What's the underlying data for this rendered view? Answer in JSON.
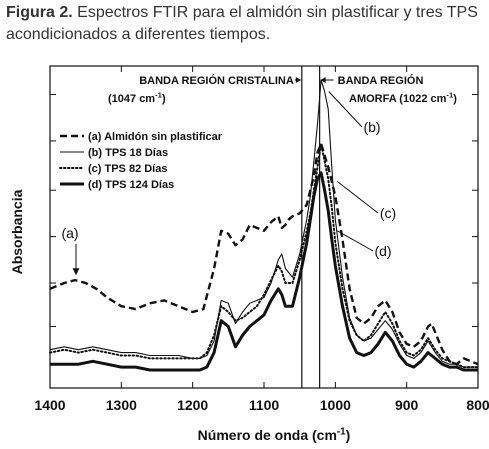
{
  "caption": {
    "label": "Figura 2.",
    "text": "Espectros FTIR para el almidón sin plastificar y tres TPS acondicionados a diferentes tiempos."
  },
  "chart_data": {
    "type": "line",
    "title": "",
    "xlabel": "Número de onda (cm",
    "xlabel_sup": "-1",
    "xlabel_close": ")",
    "ylabel": "Absorbancia",
    "xlim": [
      1400,
      800
    ],
    "ylim": [
      0,
      1
    ],
    "x_reversed": true,
    "x_ticks": [
      "1400",
      "1300",
      "1200",
      "1100",
      "1000",
      "900",
      "800"
    ],
    "x_tick_values": [
      1400,
      1300,
      1200,
      1100,
      1000,
      900,
      800
    ],
    "y_ticks_unlabeled": [
      0.15,
      0.3,
      0.46,
      0.62,
      0.79,
      0.95
    ],
    "grid": false,
    "legend_position": "top-left",
    "legend": [
      {
        "label": "(a) Almidón sin plastificar",
        "style": "dashed"
      },
      {
        "label": "(b) TPS 18 Días",
        "style": "thin-solid"
      },
      {
        "label": "(c) TPS 82 Días",
        "style": "dotted"
      },
      {
        "label": "(d) TPS 124 Días",
        "style": "thick-solid"
      }
    ],
    "reference_lines": [
      {
        "x": 1047,
        "label_line1": "BANDA REGIÓN CRISTALINA",
        "label_line2": "(1047 cm",
        "label_sup": "-1",
        "label_close": ")"
      },
      {
        "x": 1022,
        "label_line1": "BANDA REGIÓN",
        "label_line2": "AMORFA (1022 cm",
        "label_sup": "-1",
        "label_close": ")"
      }
    ],
    "annotations": [
      {
        "text": "(a)",
        "target_x": 1365,
        "target_y": 0.32
      },
      {
        "text": "(b)",
        "target_x": 1012,
        "target_y": 0.96
      },
      {
        "text": "(c)",
        "target_x": 1000,
        "target_y": 0.65
      },
      {
        "text": "(d)",
        "target_x": 1000,
        "target_y": 0.48
      }
    ],
    "series": [
      {
        "name": "(a) Almidón sin plastificar",
        "style": "dashed",
        "x": [
          1400,
          1380,
          1365,
          1350,
          1335,
          1320,
          1300,
          1280,
          1260,
          1240,
          1220,
          1200,
          1185,
          1170,
          1160,
          1150,
          1140,
          1130,
          1120,
          1110,
          1100,
          1090,
          1080,
          1075,
          1070,
          1065,
          1060,
          1050,
          1040,
          1030,
          1025,
          1020,
          1015,
          1010,
          1000,
          990,
          980,
          970,
          960,
          950,
          940,
          930,
          920,
          910,
          900,
          890,
          880,
          870,
          865,
          860,
          850,
          840,
          830,
          820,
          810,
          800
        ],
        "y": [
          0.28,
          0.3,
          0.31,
          0.3,
          0.28,
          0.25,
          0.22,
          0.21,
          0.23,
          0.24,
          0.22,
          0.2,
          0.21,
          0.35,
          0.48,
          0.47,
          0.43,
          0.45,
          0.5,
          0.49,
          0.48,
          0.51,
          0.53,
          0.49,
          0.5,
          0.52,
          0.53,
          0.54,
          0.57,
          0.67,
          0.75,
          0.78,
          0.74,
          0.7,
          0.6,
          0.45,
          0.28,
          0.18,
          0.16,
          0.18,
          0.22,
          0.24,
          0.2,
          0.13,
          0.09,
          0.08,
          0.1,
          0.15,
          0.16,
          0.13,
          0.07,
          0.03,
          0.02,
          0.04,
          0.03,
          0.02
        ]
      },
      {
        "name": "(b) TPS 18 Días",
        "style": "thin-solid",
        "x": [
          1400,
          1380,
          1360,
          1340,
          1320,
          1300,
          1280,
          1260,
          1240,
          1220,
          1200,
          1190,
          1180,
          1170,
          1160,
          1150,
          1140,
          1130,
          1120,
          1110,
          1100,
          1090,
          1080,
          1075,
          1070,
          1060,
          1050,
          1040,
          1035,
          1030,
          1025,
          1020,
          1015,
          1010,
          1005,
          1000,
          990,
          980,
          970,
          960,
          950,
          940,
          930,
          920,
          910,
          900,
          890,
          880,
          870,
          860,
          850,
          840,
          830,
          820,
          810,
          800
        ],
        "y": [
          0.07,
          0.08,
          0.07,
          0.08,
          0.07,
          0.06,
          0.06,
          0.05,
          0.05,
          0.05,
          0.04,
          0.04,
          0.05,
          0.1,
          0.24,
          0.23,
          0.16,
          0.2,
          0.23,
          0.24,
          0.25,
          0.3,
          0.38,
          0.4,
          0.35,
          0.32,
          0.4,
          0.52,
          0.6,
          0.72,
          0.85,
          1.0,
          0.96,
          0.9,
          0.7,
          0.52,
          0.32,
          0.18,
          0.12,
          0.1,
          0.11,
          0.14,
          0.17,
          0.14,
          0.09,
          0.05,
          0.04,
          0.06,
          0.1,
          0.06,
          0.03,
          0.02,
          0.02,
          0.01,
          0.01,
          0.01
        ]
      },
      {
        "name": "(c) TPS 82 Días",
        "style": "dotted",
        "x": [
          1400,
          1380,
          1360,
          1340,
          1320,
          1300,
          1280,
          1260,
          1240,
          1220,
          1200,
          1190,
          1180,
          1170,
          1160,
          1150,
          1140,
          1130,
          1120,
          1110,
          1100,
          1090,
          1080,
          1075,
          1070,
          1060,
          1050,
          1040,
          1035,
          1030,
          1025,
          1020,
          1015,
          1010,
          1005,
          1000,
          990,
          980,
          970,
          960,
          950,
          940,
          930,
          920,
          910,
          900,
          890,
          880,
          870,
          860,
          850,
          840,
          830,
          820,
          810,
          800
        ],
        "y": [
          0.06,
          0.07,
          0.06,
          0.07,
          0.06,
          0.05,
          0.05,
          0.04,
          0.04,
          0.04,
          0.04,
          0.04,
          0.06,
          0.12,
          0.22,
          0.2,
          0.17,
          0.18,
          0.2,
          0.22,
          0.26,
          0.31,
          0.36,
          0.34,
          0.3,
          0.3,
          0.38,
          0.48,
          0.54,
          0.62,
          0.7,
          0.78,
          0.72,
          0.66,
          0.56,
          0.44,
          0.28,
          0.17,
          0.12,
          0.1,
          0.12,
          0.16,
          0.2,
          0.16,
          0.1,
          0.06,
          0.05,
          0.07,
          0.11,
          0.07,
          0.04,
          0.03,
          0.02,
          0.01,
          0.01,
          0.01
        ]
      },
      {
        "name": "(d) TPS 124 Días",
        "style": "thick-solid",
        "x": [
          1400,
          1380,
          1360,
          1340,
          1320,
          1300,
          1280,
          1260,
          1240,
          1220,
          1200,
          1190,
          1180,
          1170,
          1160,
          1150,
          1140,
          1130,
          1120,
          1110,
          1100,
          1090,
          1080,
          1075,
          1070,
          1060,
          1050,
          1040,
          1035,
          1030,
          1025,
          1020,
          1015,
          1010,
          1005,
          1000,
          990,
          980,
          970,
          960,
          950,
          940,
          930,
          920,
          910,
          900,
          890,
          880,
          870,
          860,
          850,
          840,
          830,
          820,
          810,
          800
        ],
        "y": [
          0.02,
          0.02,
          0.02,
          0.03,
          0.02,
          0.01,
          0.01,
          0.0,
          0.0,
          0.0,
          0.0,
          0.0,
          0.01,
          0.06,
          0.17,
          0.15,
          0.08,
          0.12,
          0.15,
          0.17,
          0.19,
          0.24,
          0.28,
          0.26,
          0.22,
          0.22,
          0.32,
          0.44,
          0.52,
          0.6,
          0.66,
          0.68,
          0.62,
          0.55,
          0.45,
          0.36,
          0.22,
          0.11,
          0.06,
          0.05,
          0.06,
          0.09,
          0.13,
          0.1,
          0.05,
          0.02,
          0.01,
          0.03,
          0.06,
          0.04,
          0.02,
          0.01,
          0.01,
          0.0,
          0.0,
          0.0
        ]
      }
    ]
  }
}
